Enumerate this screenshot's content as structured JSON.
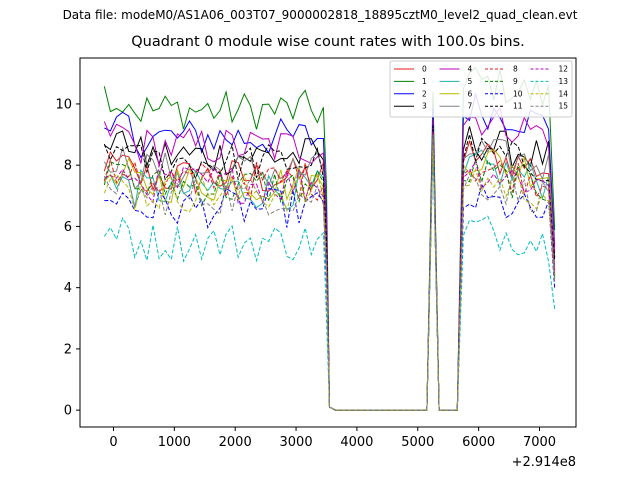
{
  "chart_data": {
    "type": "line",
    "suptitle": "Data file: modeM0/AS1A06_003T07_9000002818_18895cztM0_level2_quad_clean.evt",
    "title": "Quadrant 0 module wise count rates with 100.0s bins.",
    "xlabel": "",
    "ylabel": "",
    "x_offset_label": "+2.914e8",
    "xlim": [
      -550,
      7600
    ],
    "ylim": [
      -0.55,
      11.5
    ],
    "xticks": [
      0,
      1000,
      2000,
      3000,
      4000,
      5000,
      6000,
      7000
    ],
    "xtick_labels": [
      "0",
      "1000",
      "2000",
      "3000",
      "4000",
      "5000",
      "6000",
      "7000"
    ],
    "yticks": [
      0,
      2,
      4,
      6,
      8,
      10
    ],
    "ytick_labels": [
      "0",
      "2",
      "4",
      "6",
      "8",
      "10"
    ],
    "grid": false,
    "legend_position": "top-right",
    "legend_columns": 4,
    "x_segments": {
      "active1": [
        -150,
        3450
      ],
      "drop": [
        3550,
        3650
      ],
      "gap_zero": [
        3650,
        5050
      ],
      "active2": [
        5250,
        5250
      ],
      "active3": [
        5850,
        7250
      ],
      "bin": 100
    },
    "series": [
      {
        "name": "0",
        "color": "#e41a1c",
        "dash": "solid",
        "mean": 7.6,
        "peak1": 9.3,
        "peak3": 8.4
      },
      {
        "name": "1",
        "color": "#008000",
        "dash": "solid",
        "mean": 9.8,
        "peak1": 10.4,
        "peak3": 10.8
      },
      {
        "name": "2",
        "color": "#0000ff",
        "dash": "solid",
        "mean": 8.9,
        "peak1": 9.9,
        "peak3": 9.9
      },
      {
        "name": "3",
        "color": "#000000",
        "dash": "solid",
        "mean": 8.3,
        "peak1": 9.3,
        "peak3": 8.8
      },
      {
        "name": "4",
        "color": "#bf00bf",
        "dash": "solid",
        "mean": 8.6,
        "peak1": 9.5,
        "peak3": 9.6
      },
      {
        "name": "5",
        "color": "#20b2aa",
        "dash": "solid",
        "mean": 7.2,
        "peak1": 9.0,
        "peak3": 8.0
      },
      {
        "name": "6",
        "color": "#b8b800",
        "dash": "solid",
        "mean": 7.4,
        "peak1": 9.0,
        "peak3": 8.3
      },
      {
        "name": "7",
        "color": "#808080",
        "dash": "solid",
        "mean": 7.8,
        "peak1": 9.2,
        "peak3": 8.5
      },
      {
        "name": "8",
        "color": "#e41a1c",
        "dash": "dashed",
        "mean": 7.5,
        "peak1": 9.1,
        "peak3": 8.0
      },
      {
        "name": "9",
        "color": "#008000",
        "dash": "dashed",
        "mean": 7.3,
        "peak1": 9.0,
        "peak3": 7.8
      },
      {
        "name": "10",
        "color": "#0000ff",
        "dash": "dashed",
        "mean": 6.6,
        "peak1": 8.8,
        "peak3": 6.9
      },
      {
        "name": "11",
        "color": "#000000",
        "dash": "dashed",
        "mean": 8.1,
        "peak1": 9.3,
        "peak3": 8.5
      },
      {
        "name": "12",
        "color": "#bf00bf",
        "dash": "dashed",
        "mean": 7.4,
        "peak1": 9.1,
        "peak3": 7.9
      },
      {
        "name": "13",
        "color": "#00bfbf",
        "dash": "dashed",
        "mean": 5.5,
        "peak1": 8.6,
        "peak3": 6.0
      },
      {
        "name": "14",
        "color": "#b8b800",
        "dash": "dashed",
        "mean": 7.1,
        "peak1": 9.0,
        "peak3": 7.6
      },
      {
        "name": "15",
        "color": "#808080",
        "dash": "dashed",
        "mean": 7.0,
        "peak1": 9.0,
        "peak3": 7.5
      }
    ]
  }
}
